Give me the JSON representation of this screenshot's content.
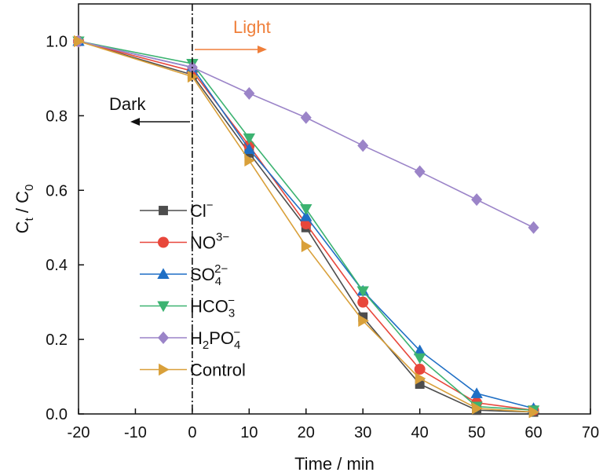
{
  "chart_data": {
    "type": "line",
    "xlabel": "Time / min",
    "ylabel": {
      "base": "C",
      "sub1": "t",
      "sep": " / ",
      "base2": "C",
      "sub2": "0"
    },
    "xlim": [
      -20,
      70
    ],
    "ylim": [
      0,
      1.1
    ],
    "x_ticks": [
      "-20",
      "-10",
      "0",
      "10",
      "20",
      "30",
      "40",
      "50",
      "60",
      "70"
    ],
    "y_ticks": [
      "0.0",
      "0.2",
      "0.4",
      "0.6",
      "0.8",
      "1.0"
    ],
    "grid": false,
    "legend_placement": "center-left",
    "x": [
      -20,
      0,
      10,
      20,
      30,
      40,
      50,
      60
    ],
    "series": [
      {
        "name": "Cl⁻",
        "legend": {
          "base": "Cl",
          "sup": "−"
        },
        "color": "#4d4d4d",
        "marker": "square",
        "values": [
          1.0,
          0.91,
          0.7,
          0.5,
          0.26,
          0.08,
          0.01,
          0.005
        ]
      },
      {
        "name": "NO³⁻",
        "legend": {
          "base": "NO",
          "sup": "3−"
        },
        "color": "#e8473b",
        "marker": "circle",
        "values": [
          1.0,
          0.92,
          0.72,
          0.51,
          0.3,
          0.12,
          0.03,
          0.01
        ]
      },
      {
        "name": "SO₄²⁻",
        "legend": {
          "base": "SO",
          "sub": "4",
          "sup": "2−"
        },
        "color": "#1f6fc5",
        "marker": "triangle-up",
        "values": [
          1.0,
          0.93,
          0.71,
          0.53,
          0.33,
          0.17,
          0.055,
          0.015
        ]
      },
      {
        "name": "HCO₃⁻",
        "legend": {
          "base": "HCO",
          "sub": "3",
          "sup": "−"
        },
        "color": "#3cb371",
        "marker": "triangle-down",
        "values": [
          1.0,
          0.94,
          0.74,
          0.55,
          0.33,
          0.15,
          0.02,
          0.01
        ]
      },
      {
        "name": "H₂PO₄⁻",
        "legend": {
          "base": "H",
          "sub": "2",
          "mid": "PO",
          "sub2": "4",
          "sup": "−"
        },
        "color": "#9b84c8",
        "marker": "diamond",
        "values": [
          1.0,
          0.93,
          0.86,
          0.795,
          0.72,
          0.65,
          0.575,
          0.5
        ]
      },
      {
        "name": "Control",
        "legend": {
          "base": "Control"
        },
        "color": "#d9a03a",
        "marker": "triangle-right",
        "values": [
          1.0,
          0.905,
          0.68,
          0.45,
          0.25,
          0.095,
          0.015,
          0.005
        ]
      }
    ],
    "annotations": {
      "divider_x": 0,
      "light": {
        "text": "Light",
        "color": "#ef7f3a"
      },
      "dark": {
        "text": "Dark",
        "color": "#111111"
      }
    }
  }
}
